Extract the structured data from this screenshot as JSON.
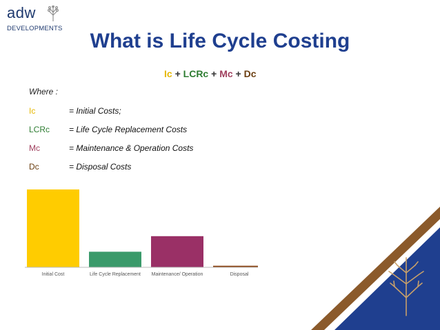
{
  "logo": {
    "word": "adw",
    "sub": "DEVELOPMENTS"
  },
  "slide": {
    "title": "What is Life Cycle Costing"
  },
  "formula": {
    "t1": "Ic",
    "op1": " + ",
    "t2": "LCRc",
    "op2": " + ",
    "t3": "Mc",
    "op3": " + ",
    "t4": "Dc"
  },
  "where_label": "Where :",
  "definitions": [
    {
      "abbr": "Ic",
      "desc": "= Initial Costs;",
      "color": "#e6b800"
    },
    {
      "abbr": "LCRc",
      "desc": "= Life Cycle Replacement Costs",
      "color": "#2e7d32"
    },
    {
      "abbr": "Mc",
      "desc": "= Maintenance & Operation Costs",
      "color": "#a0405f"
    },
    {
      "abbr": "Dc",
      "desc": "= Disposal Costs",
      "color": "#6b3e10"
    }
  ],
  "chart_data": {
    "type": "bar",
    "categories": [
      "Initial Cost",
      "Life Cycle Replacement",
      "Maintenance/ Operation",
      "Disposal"
    ],
    "values": [
      100,
      20,
      40,
      2
    ],
    "colors": [
      "#ffcc00",
      "#3a9a6a",
      "#9a3066",
      "#8b4513"
    ],
    "title": "",
    "xlabel": "",
    "ylabel": "",
    "ylim": [
      0,
      100
    ]
  },
  "decoration": {
    "stripe_color": "#8b5a2b",
    "panel_color": "#1f3f8f",
    "tree_icon": "tree-icon"
  }
}
